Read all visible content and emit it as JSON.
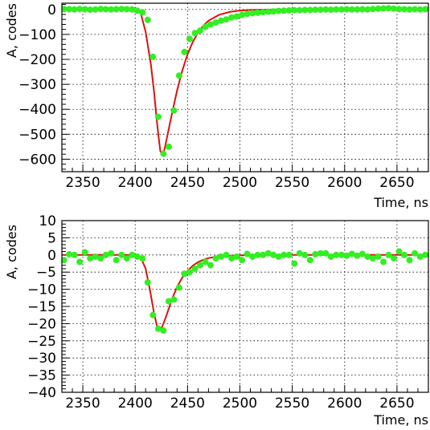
{
  "colors": {
    "points": "#33ee22",
    "fit": "#dd1111",
    "grid": "#000000",
    "axis": "#000000"
  },
  "chart_data": [
    {
      "type": "scatter",
      "xlabel": "Time, ns",
      "ylabel": "A, codes",
      "xlim": [
        2330,
        2680
      ],
      "ylim": [
        -650,
        25
      ],
      "xticks": [
        2350,
        2400,
        2450,
        2500,
        2550,
        2600,
        2650
      ],
      "yticks": [
        0,
        -100,
        -200,
        -300,
        -400,
        -500,
        -600
      ],
      "grid": true,
      "series": [
        {
          "kind": "points",
          "x": [
            2332,
            2337,
            2342,
            2347,
            2352,
            2357,
            2362,
            2367,
            2372,
            2377,
            2382,
            2387,
            2392,
            2397,
            2402,
            2407,
            2412,
            2417,
            2422,
            2427,
            2432,
            2437,
            2442,
            2447,
            2452,
            2457,
            2462,
            2467,
            2472,
            2477,
            2482,
            2487,
            2492,
            2497,
            2502,
            2507,
            2512,
            2517,
            2522,
            2527,
            2532,
            2537,
            2542,
            2547,
            2552,
            2557,
            2562,
            2567,
            2572,
            2577,
            2582,
            2587,
            2592,
            2597,
            2602,
            2607,
            2612,
            2617,
            2622,
            2627,
            2632,
            2637,
            2642,
            2647,
            2652,
            2657,
            2662,
            2667,
            2672,
            2677
          ],
          "y": [
            2,
            1,
            0,
            2,
            1,
            -1,
            0,
            2,
            1,
            0,
            1,
            2,
            1,
            0,
            -5,
            -12,
            -42,
            -190,
            -430,
            -578,
            -550,
            -405,
            -265,
            -170,
            -118,
            -95,
            -85,
            -70,
            -60,
            -52,
            -45,
            -40,
            -32,
            -28,
            -22,
            -18,
            -15,
            -13,
            -11,
            -9,
            -8,
            -6,
            -5,
            -4,
            -3,
            -3,
            -2,
            -2,
            -1,
            -1,
            0,
            -1,
            0,
            0,
            1,
            0,
            0,
            1,
            0,
            2,
            3,
            4,
            5,
            3,
            2,
            1,
            0,
            1,
            0,
            1
          ]
        },
        {
          "kind": "fit",
          "x": [
            2330,
            2400,
            2405,
            2410,
            2415,
            2418,
            2420,
            2422,
            2424,
            2426,
            2428,
            2430,
            2435,
            2440,
            2445,
            2450,
            2455,
            2460,
            2465,
            2470,
            2480,
            2490,
            2500,
            2510,
            2520,
            2540,
            2580,
            2680
          ],
          "y": [
            0,
            0,
            -10,
            -90,
            -220,
            -330,
            -420,
            -500,
            -568,
            -580,
            -560,
            -520,
            -420,
            -325,
            -245,
            -180,
            -130,
            -93,
            -65,
            -45,
            -22,
            -10,
            -5,
            -2,
            -1,
            0,
            0,
            0
          ]
        }
      ]
    },
    {
      "type": "scatter",
      "xlabel": "Time, ns",
      "ylabel": "A, codes",
      "xlim": [
        2330,
        2680
      ],
      "ylim": [
        -40,
        10
      ],
      "xticks": [
        2350,
        2400,
        2450,
        2500,
        2550,
        2600,
        2650
      ],
      "yticks": [
        10,
        5,
        0,
        -5,
        -10,
        -15,
        -20,
        -25,
        -30,
        -35,
        -40
      ],
      "grid": true,
      "series": [
        {
          "kind": "points",
          "x": [
            2332,
            2337,
            2342,
            2347,
            2352,
            2357,
            2362,
            2367,
            2372,
            2377,
            2382,
            2387,
            2392,
            2397,
            2402,
            2407,
            2412,
            2417,
            2422,
            2427,
            2432,
            2437,
            2442,
            2447,
            2452,
            2457,
            2462,
            2467,
            2472,
            2477,
            2482,
            2487,
            2492,
            2497,
            2502,
            2507,
            2512,
            2517,
            2522,
            2527,
            2532,
            2537,
            2542,
            2547,
            2552,
            2557,
            2562,
            2567,
            2572,
            2577,
            2582,
            2587,
            2592,
            2597,
            2602,
            2607,
            2612,
            2617,
            2622,
            2627,
            2632,
            2637,
            2642,
            2647,
            2652,
            2657,
            2662,
            2667,
            2672,
            2677
          ],
          "y": [
            -1.5,
            0.2,
            0,
            -2,
            0.8,
            -1,
            -0.5,
            -1,
            0,
            0.5,
            -1.5,
            0,
            -1,
            0,
            -0.5,
            -1,
            -8,
            -17.5,
            -21.5,
            -22,
            -13.5,
            -13,
            -9.5,
            -5.5,
            -5,
            -4,
            -3,
            -2,
            -3,
            -1,
            -0.5,
            0,
            -1,
            -0.5,
            -1.5,
            0.3,
            -0.5,
            0,
            0,
            0.5,
            0,
            -0.5,
            0,
            0,
            -2.5,
            0.5,
            0,
            -1.5,
            0.2,
            0.5,
            0.5,
            -0.5,
            0,
            0,
            -0.2,
            0.3,
            -0.2,
            0.3,
            -0.5,
            -1,
            -0.5,
            -2,
            0,
            -1,
            1,
            0,
            -1.5,
            0.5,
            -0.5,
            0
          ]
        },
        {
          "kind": "fit",
          "x": [
            2330,
            2400,
            2405,
            2410,
            2414,
            2418,
            2421,
            2424,
            2427,
            2430,
            2435,
            2440,
            2445,
            2450,
            2455,
            2460,
            2465,
            2470,
            2480,
            2490,
            2500,
            2520,
            2560,
            2680
          ],
          "y": [
            0,
            0,
            -0.5,
            -4,
            -10,
            -17,
            -21,
            -22,
            -20,
            -17.5,
            -13,
            -9.3,
            -6.6,
            -4.6,
            -3.1,
            -2.1,
            -1.4,
            -0.9,
            -0.4,
            -0.2,
            -0.1,
            0,
            0,
            0
          ]
        }
      ]
    }
  ]
}
